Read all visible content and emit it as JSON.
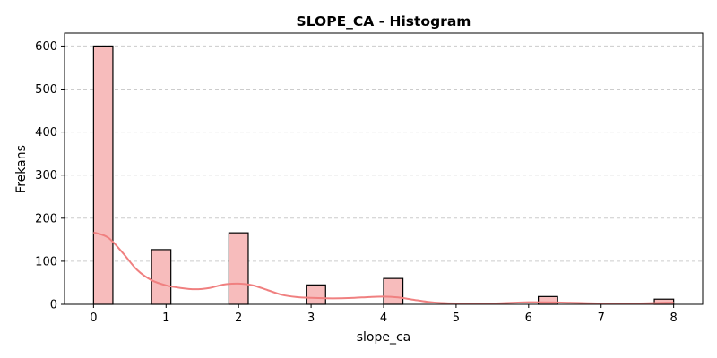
{
  "chart_data": {
    "type": "bar",
    "title": "SLOPE_CA - Histogram",
    "xlabel": "slope_ca",
    "ylabel": "Frekans",
    "xlim": [
      -0.4,
      8.4
    ],
    "ylim": [
      0,
      630
    ],
    "x_ticks": [
      0,
      1,
      2,
      3,
      4,
      5,
      6,
      7,
      8
    ],
    "y_ticks": [
      0,
      100,
      200,
      300,
      400,
      500,
      600
    ],
    "grid": "y-dashed",
    "bar_color": "#f7bcbc",
    "kde_color": "#f08080",
    "bin_width": 0.2667,
    "bars": [
      {
        "x": 0.0,
        "value": 600
      },
      {
        "x": 0.8,
        "value": 127
      },
      {
        "x": 1.8667,
        "value": 166
      },
      {
        "x": 2.9333,
        "value": 45
      },
      {
        "x": 4.0,
        "value": 60
      },
      {
        "x": 6.1333,
        "value": 18
      },
      {
        "x": 7.7333,
        "value": 12
      }
    ],
    "kde": {
      "x": [
        0,
        0.2,
        0.4,
        0.6,
        0.8,
        1.0,
        1.2,
        1.4,
        1.6,
        1.8,
        2.0,
        2.2,
        2.4,
        2.6,
        2.8,
        3.0,
        3.2,
        3.4,
        3.6,
        3.8,
        4.0,
        4.2,
        4.4,
        4.6,
        4.8,
        5.0,
        5.5,
        6.0,
        6.5,
        7.0,
        7.5,
        8.0
      ],
      "y": [
        167,
        155,
        120,
        80,
        56,
        44,
        38,
        35,
        38,
        46,
        48,
        44,
        33,
        22,
        17,
        15,
        14,
        14,
        15,
        17,
        18,
        16,
        11,
        6,
        3,
        2,
        2,
        5,
        4,
        2,
        2,
        4
      ]
    }
  }
}
